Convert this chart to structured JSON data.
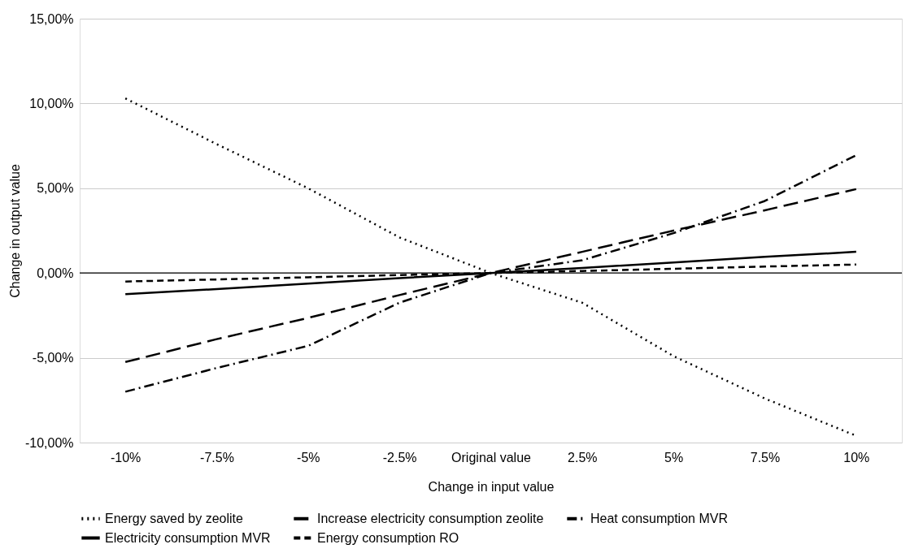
{
  "chart_data": {
    "type": "line",
    "xlabel": "Change in input value",
    "ylabel": "Change in output value",
    "categories": [
      "-10%",
      "-7.5%",
      "-5%",
      "-2.5%",
      "Original value",
      "2.5%",
      "5%",
      "7.5%",
      "10%"
    ],
    "series": [
      {
        "name": "Energy saved by zeolite",
        "color": "#000000",
        "line_style": "dotted",
        "values": [
          10.3,
          7.6,
          5.0,
          2.1,
          0,
          -1.75,
          -4.9,
          -7.4,
          -9.6
        ]
      },
      {
        "name": "Increase electricity consumption zeolite",
        "color": "#000000",
        "line_style": "longdash",
        "values": [
          -5.25,
          -3.9,
          -2.65,
          -1.3,
          0,
          1.25,
          2.5,
          3.7,
          4.95
        ]
      },
      {
        "name": "Heat consumption MVR",
        "color": "#000000",
        "line_style": "dashdot",
        "values": [
          -7.0,
          -5.6,
          -4.3,
          -1.75,
          0,
          0.75,
          2.35,
          4.25,
          6.95
        ]
      },
      {
        "name": "Electricity consumption MVR",
        "color": "#000000",
        "line_style": "solid",
        "values": [
          -1.25,
          -0.95,
          -0.62,
          -0.3,
          0,
          0.3,
          0.62,
          0.95,
          1.25
        ]
      },
      {
        "name": "Energy consumption RO",
        "color": "#000000",
        "line_style": "dashed",
        "values": [
          -0.5,
          -0.38,
          -0.25,
          -0.12,
          0,
          0.12,
          0.25,
          0.38,
          0.5
        ]
      }
    ],
    "ylim": [
      -10,
      15
    ],
    "yticks": [
      {
        "value": -10,
        "label": "-10,00%"
      },
      {
        "value": -5,
        "label": "-5,00%"
      },
      {
        "value": 0,
        "label": "0,00%"
      },
      {
        "value": 5,
        "label": "5,00%"
      },
      {
        "value": 10,
        "label": "10,00%"
      },
      {
        "value": 15,
        "label": "15,00%"
      }
    ],
    "ref_lines": [
      {
        "axis": "y",
        "value": 0,
        "color": "#000000"
      }
    ],
    "grid": "y",
    "legend": "bottom",
    "marker": "none"
  }
}
